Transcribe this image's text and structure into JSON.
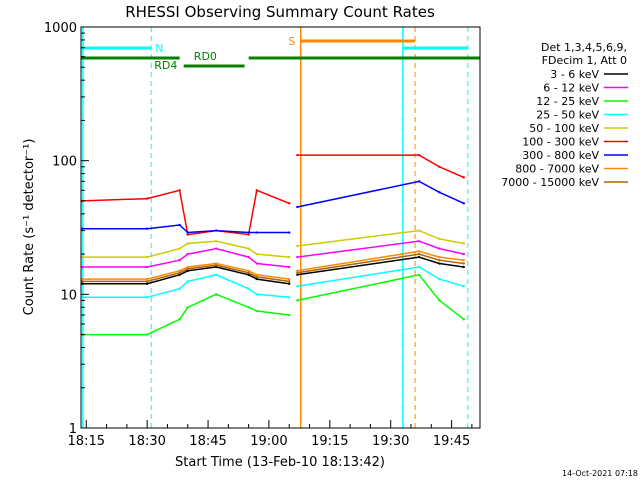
{
  "footer_timestamp": "14-Oct-2021 07:18",
  "legend": {
    "header_line1": "Det 1,3,4,5,6,9,",
    "header_line2": "FDecim 1, Att 0"
  },
  "annotations": {
    "N": "N",
    "S": "S",
    "RD0": "RD0",
    "RD4": "RD4"
  },
  "chart_data": {
    "type": "line",
    "title": "RHESSI Observing Summary Count Rates",
    "xlabel": "Start Time (13-Feb-10 18:13:42)",
    "ylabel": "Count Rate (s⁻¹ detector⁻¹)",
    "y_scale": "log",
    "ylim": [
      1,
      1000
    ],
    "xlim": [
      "18:13:42",
      "19:52:00"
    ],
    "x_ticks": [
      "18:15",
      "18:30",
      "18:45",
      "19:00",
      "19:15",
      "19:30",
      "19:45"
    ],
    "y_ticks": [
      "1",
      "10",
      "100",
      "1000"
    ],
    "grid": false,
    "legend_position": "right",
    "series": [
      {
        "name": "3 - 6 keV",
        "color": "#000000",
        "x": [
          "18:14",
          "18:30",
          "18:38",
          "18:40",
          "18:47",
          "18:55",
          "18:57",
          "19:05",
          "19:07",
          "19:37",
          "19:42",
          "19:48"
        ],
        "values": [
          12,
          12,
          14,
          15,
          16,
          14,
          13,
          12,
          14,
          19,
          17,
          16
        ]
      },
      {
        "name": "6 - 12 keV",
        "color": "#ff00ff",
        "x": [
          "18:14",
          "18:30",
          "18:38",
          "18:40",
          "18:47",
          "18:55",
          "18:57",
          "19:05",
          "19:07",
          "19:37",
          "19:42",
          "19:48"
        ],
        "values": [
          16,
          16,
          18,
          20,
          22,
          19,
          17,
          16,
          19,
          25,
          22,
          20
        ]
      },
      {
        "name": "12 - 25 keV",
        "color": "#00ff00",
        "x": [
          "18:14",
          "18:30",
          "18:38",
          "18:40",
          "18:47",
          "18:55",
          "18:57",
          "19:05",
          "19:07",
          "19:37",
          "19:42",
          "19:48"
        ],
        "values": [
          5,
          5,
          6.5,
          8,
          10,
          8,
          7.5,
          7,
          9,
          14,
          9,
          6.5
        ]
      },
      {
        "name": "25 - 50 keV",
        "color": "#00ffff",
        "x": [
          "18:14",
          "18:30",
          "18:38",
          "18:40",
          "18:47",
          "18:55",
          "18:57",
          "19:05",
          "19:07",
          "19:37",
          "19:42",
          "19:48"
        ],
        "values": [
          9.5,
          9.5,
          11,
          12.5,
          14,
          11,
          10,
          9.5,
          11.5,
          16,
          13,
          11.5
        ]
      },
      {
        "name": "50 - 100 keV",
        "color": "#cccc00",
        "x": [
          "18:14",
          "18:30",
          "18:38",
          "18:40",
          "18:47",
          "18:55",
          "18:57",
          "19:05",
          "19:07",
          "19:37",
          "19:42",
          "19:48"
        ],
        "values": [
          19,
          19,
          22,
          24,
          25,
          22,
          20,
          19,
          23,
          30,
          26,
          24
        ]
      },
      {
        "name": "100 - 300 keV",
        "color": "#ff0000",
        "x": [
          "18:14",
          "18:30",
          "18:38",
          "18:40",
          "18:47",
          "18:55",
          "18:57",
          "19:05",
          "19:07",
          "19:37",
          "19:42",
          "19:48"
        ],
        "values": [
          50,
          52,
          60,
          28,
          30,
          28,
          60,
          48,
          110,
          110,
          90,
          75
        ]
      },
      {
        "name": "300 - 800 keV",
        "color": "#0000ff",
        "x": [
          "18:14",
          "18:30",
          "18:38",
          "18:40",
          "18:47",
          "18:55",
          "18:57",
          "19:05",
          "19:07",
          "19:37",
          "19:42",
          "19:48"
        ],
        "values": [
          31,
          31,
          33,
          29,
          30,
          29,
          29,
          29,
          45,
          70,
          58,
          48
        ]
      },
      {
        "name": "800 - 7000 keV",
        "color": "#ff8800",
        "x": [
          "18:14",
          "18:30",
          "18:38",
          "18:40",
          "18:47",
          "18:55",
          "18:57",
          "19:05",
          "19:07",
          "19:37",
          "19:42",
          "19:48"
        ],
        "values": [
          13,
          13,
          15,
          16,
          17,
          15,
          14,
          13,
          15,
          21,
          19,
          18
        ]
      },
      {
        "name": "7000 - 15000 keV",
        "color": "#aa6600",
        "x": [
          "18:14",
          "18:30",
          "18:38",
          "18:40",
          "18:47",
          "18:55",
          "18:57",
          "19:05",
          "19:07",
          "19:37",
          "19:42",
          "19:48"
        ],
        "values": [
          12.5,
          12.5,
          14.5,
          15.5,
          16.5,
          14.5,
          13.5,
          12.5,
          14.5,
          20,
          18,
          17
        ]
      }
    ]
  }
}
